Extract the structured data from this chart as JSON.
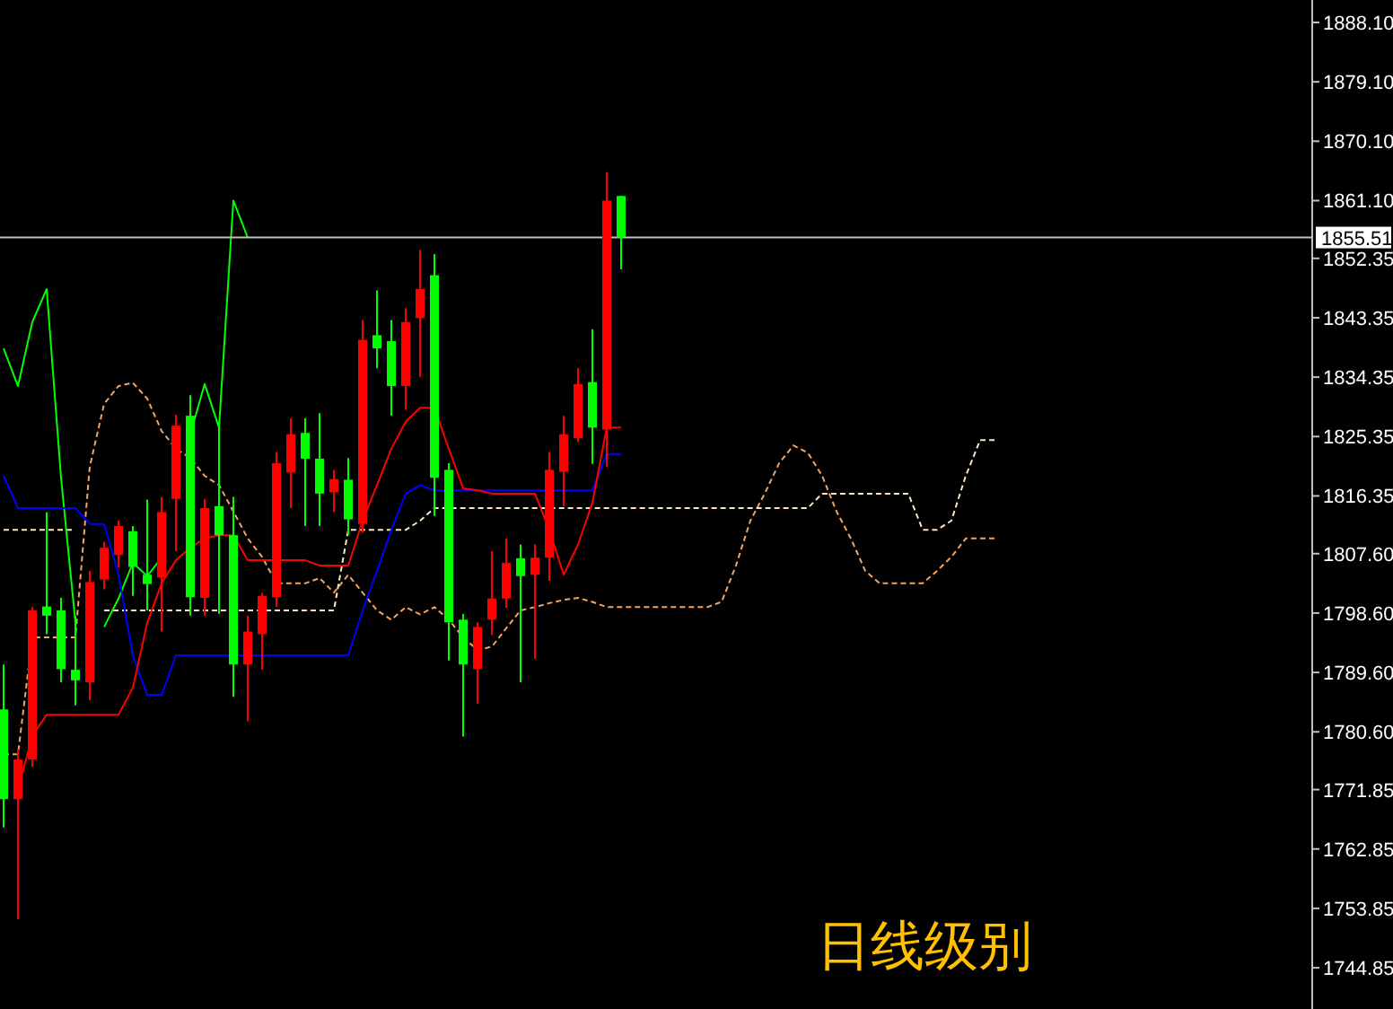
{
  "chart_data": {
    "type": "candlestick",
    "categories": [
      null,
      null,
      null,
      null,
      null,
      null,
      null,
      null,
      null,
      null,
      null,
      null,
      null,
      null,
      null,
      null,
      null,
      null,
      null,
      null,
      null,
      null,
      null,
      null,
      null,
      null,
      null,
      null,
      null,
      null,
      null,
      null,
      null,
      null,
      null,
      null,
      null,
      null,
      null,
      null,
      null,
      null,
      null,
      null,
      null,
      null,
      null,
      null,
      null,
      null,
      null,
      null,
      null,
      null,
      null,
      null,
      null,
      null,
      null,
      null,
      null,
      null,
      null,
      null,
      null,
      null,
      null,
      null,
      null,
      null
    ],
    "ohlc": [
      [
        1784.0,
        1790.8,
        1766.1,
        1770.4
      ],
      [
        1770.4,
        1778.0,
        1752.2,
        1776.4
      ],
      [
        1776.4,
        1799.5,
        1775.3,
        1799.0
      ],
      [
        1799.6,
        1813.9,
        1795.4,
        1798.2
      ],
      [
        1799.0,
        1800.9,
        1788.1,
        1790.1
      ],
      [
        1790.0,
        1798.2,
        1784.6,
        1788.4
      ],
      [
        1788.1,
        1805.0,
        1785.4,
        1803.3
      ],
      [
        1803.7,
        1809.4,
        1802.2,
        1808.5
      ],
      [
        1807.4,
        1812.6,
        1805.5,
        1811.8
      ],
      [
        1811.0,
        1811.8,
        1801.2,
        1805.6
      ],
      [
        1804.4,
        1815.8,
        1799.0,
        1803.0
      ],
      [
        1804.0,
        1816.2,
        1795.8,
        1813.9
      ],
      [
        1815.9,
        1828.7,
        1808.0,
        1827.0
      ],
      [
        1828.5,
        1831.6,
        1798.2,
        1801.0
      ],
      [
        1800.9,
        1815.9,
        1798.2,
        1814.5
      ],
      [
        1814.8,
        1827.0,
        1798.5,
        1810.4
      ],
      [
        1810.4,
        1816.2,
        1785.9,
        1790.8
      ],
      [
        1790.8,
        1798.2,
        1782.2,
        1795.8
      ],
      [
        1795.4,
        1801.7,
        1790.0,
        1801.2
      ],
      [
        1801.0,
        1823.0,
        1799.5,
        1821.3
      ],
      [
        1819.9,
        1828.1,
        1814.5,
        1825.7
      ],
      [
        1825.9,
        1828.1,
        1811.8,
        1822.0
      ],
      [
        1822.0,
        1828.9,
        1811.8,
        1816.7
      ],
      [
        1816.9,
        1820.3,
        1813.9,
        1818.9
      ],
      [
        1818.8,
        1822.1,
        1810.4,
        1812.8
      ],
      [
        1812.1,
        1843.0,
        1810.8,
        1840.0
      ],
      [
        1840.7,
        1847.5,
        1835.7,
        1838.7
      ],
      [
        1839.8,
        1843.0,
        1828.5,
        1833.0
      ],
      [
        1833.0,
        1844.8,
        1829.4,
        1842.7
      ],
      [
        1843.3,
        1853.6,
        1834.4,
        1847.7
      ],
      [
        1849.8,
        1853.0,
        1813.3,
        1819.1
      ],
      [
        1820.3,
        1821.3,
        1791.4,
        1797.2
      ],
      [
        1797.6,
        1798.5,
        1779.9,
        1790.8
      ],
      [
        1790.1,
        1797.2,
        1784.9,
        1796.5
      ],
      [
        1797.6,
        1808.0,
        1795.3,
        1800.8
      ],
      [
        1800.8,
        1809.9,
        1799.4,
        1806.2
      ],
      [
        1806.9,
        1809.0,
        1788.1,
        1804.2
      ],
      [
        1804.4,
        1809.0,
        1791.7,
        1807.0
      ],
      [
        1807.0,
        1823.0,
        1803.5,
        1820.3
      ],
      [
        1820.0,
        1828.5,
        1814.8,
        1825.7
      ],
      [
        1825.1,
        1835.7,
        1824.5,
        1833.3
      ],
      [
        1833.6,
        1841.6,
        1821.2,
        1826.7
      ],
      [
        1826.4,
        1865.4,
        1820.8,
        1861.1
      ],
      [
        1861.8,
        1861.8,
        1850.7,
        1855.51
      ],
      null,
      null,
      null,
      null,
      null,
      null,
      null,
      null,
      null,
      null,
      null,
      null,
      null,
      null,
      null,
      null,
      null,
      null,
      null,
      null,
      null,
      null,
      null,
      null,
      null,
      null
    ],
    "colors": [
      "#00ff00",
      "#ff0000",
      "#ff0000",
      "#00ff00",
      "#00ff00",
      "#00ff00",
      "#ff0000",
      "#ff0000",
      "#ff0000",
      "#00ff00",
      "#00ff00",
      "#ff0000",
      "#ff0000",
      "#00ff00",
      "#ff0000",
      "#00ff00",
      "#00ff00",
      "#ff0000",
      "#ff0000",
      "#ff0000",
      "#ff0000",
      "#00ff00",
      "#00ff00",
      "#ff0000",
      "#00ff00",
      "#ff0000",
      "#00ff00",
      "#00ff00",
      "#ff0000",
      "#ff0000",
      "#00ff00",
      "#00ff00",
      "#00ff00",
      "#ff0000",
      "#ff0000",
      "#ff0000",
      "#00ff00",
      "#ff0000",
      "#ff0000",
      "#ff0000",
      "#ff0000",
      "#00ff00",
      "#ff0000",
      "#00ff00",
      null,
      null,
      null,
      null,
      null,
      null,
      null,
      null,
      null,
      null,
      null,
      null,
      null,
      null,
      null,
      null,
      null,
      null,
      null,
      null,
      null,
      null,
      null,
      null,
      null,
      null
    ],
    "series": [
      {
        "type": "line",
        "color": "#f4a460",
        "line_style": "dashed",
        "values": [
          1777.2,
          1777.2,
          1794.9,
          1794.9,
          1794.9,
          1794.9,
          1820.8,
          1830.3,
          1833.0,
          1833.5,
          1831.1,
          1826.2,
          1823.5,
          1822.1,
          1819.4,
          1818.0,
          1814.0,
          1809.9,
          1807.1,
          1803.1,
          1803.1,
          1803.1,
          1803.9,
          1801.7,
          1804.4,
          1801.7,
          1799.0,
          1797.6,
          1799.5,
          1798.4,
          1799.5,
          1797.6,
          1794.9,
          1793.0,
          1793.5,
          1796.3,
          1799.0,
          1799.5,
          1800.1,
          1800.6,
          1800.9,
          1800.3,
          1799.5,
          1799.5,
          1799.5,
          1799.5,
          1799.5,
          1799.5,
          1799.5,
          1799.5,
          1800.3,
          1805.8,
          1812.6,
          1816.7,
          1821.3,
          1824.0,
          1822.9,
          1819.4,
          1814.0,
          1809.9,
          1805.0,
          1803.1,
          1803.1,
          1803.1,
          1803.1,
          1805.0,
          1807.1,
          1809.9,
          1809.9,
          1809.9
        ]
      },
      {
        "type": "line",
        "color": "#ffe4c4",
        "line_style": "dashed",
        "values": [
          1811.2,
          1811.2,
          1811.2,
          1811.2,
          1811.2,
          1811.2,
          null,
          1799.0,
          1799.0,
          1799.0,
          1799.0,
          1799.0,
          1799.0,
          1799.0,
          1799.0,
          1799.0,
          1799.0,
          1799.0,
          1799.0,
          1799.0,
          1799.0,
          1799.0,
          1799.0,
          1799.0,
          1811.2,
          1811.2,
          1811.2,
          1811.2,
          1811.2,
          1812.6,
          1814.5,
          1814.5,
          1814.5,
          1814.5,
          1814.5,
          1814.5,
          1814.5,
          1814.5,
          1814.5,
          1814.5,
          1814.5,
          1814.5,
          1814.5,
          1814.5,
          1814.5,
          1814.5,
          1814.5,
          1814.5,
          1814.5,
          1814.5,
          1814.5,
          1814.5,
          1814.5,
          1814.5,
          1814.5,
          1814.5,
          1814.5,
          1816.7,
          1816.7,
          1816.7,
          1816.7,
          1816.7,
          1816.7,
          1816.7,
          1811.2,
          1811.2,
          1812.6,
          1819.4,
          1824.8,
          1824.8
        ]
      },
      {
        "type": "line",
        "color": "#00ff00",
        "line_style": "solid",
        "values": [
          1838.7,
          1833.0,
          1842.7,
          1847.7,
          1819.1,
          1797.2,
          null,
          1796.5,
          1800.8,
          1806.2,
          1804.2,
          1807.0,
          null,
          1825.7,
          1833.3,
          1826.7,
          1861.1,
          1855.5,
          null,
          null,
          null,
          null,
          null,
          null,
          null,
          null,
          null,
          null,
          null,
          null,
          null,
          null,
          null,
          null,
          null,
          null,
          null,
          null,
          null,
          null,
          null,
          null,
          null,
          null,
          null,
          null,
          null,
          null,
          null,
          null,
          null,
          null,
          null,
          null,
          null,
          null,
          null,
          null,
          null,
          null,
          null,
          null,
          null,
          null,
          null,
          null,
          null,
          null,
          null,
          null
        ]
      },
      {
        "type": "line",
        "color": "#0000ff",
        "line_style": "solid",
        "values": [
          1819.4,
          1814.5,
          1814.5,
          1814.5,
          1814.5,
          1814.5,
          1812.1,
          1812.1,
          1804.4,
          1792.2,
          1786.2,
          1786.2,
          1792.2,
          1792.2,
          1792.2,
          1792.2,
          1792.2,
          1792.2,
          1792.2,
          1792.2,
          1792.2,
          1792.2,
          1792.2,
          1792.2,
          1792.2,
          1799.0,
          1805.0,
          1811.2,
          1816.7,
          1818.0,
          1817.2,
          1817.2,
          1817.2,
          1817.2,
          1817.2,
          1817.2,
          1817.2,
          1817.2,
          1817.2,
          1817.2,
          1817.2,
          1817.2,
          1822.7,
          1822.7,
          null,
          null,
          null,
          null,
          null,
          null,
          null,
          null,
          null,
          null,
          null,
          null,
          null,
          null,
          null,
          null,
          null,
          null,
          null,
          null,
          null,
          null,
          null,
          null,
          null,
          null
        ]
      },
      {
        "type": "line",
        "color": "#ff0000",
        "line_style": "solid",
        "values": [
          null,
          1771.8,
          1780.0,
          1783.2,
          1783.2,
          1783.2,
          1783.2,
          1783.2,
          1783.2,
          1787.3,
          1797.1,
          1803.1,
          1806.6,
          1808.5,
          1809.9,
          1810.4,
          1810.4,
          1806.6,
          1806.6,
          1806.6,
          1806.6,
          1806.6,
          1805.8,
          1805.8,
          1805.8,
          1812.6,
          1818.0,
          1823.5,
          1827.6,
          1829.7,
          1829.7,
          1823.5,
          1817.5,
          1817.2,
          1816.7,
          1816.7,
          1816.7,
          1816.7,
          1811.2,
          1804.4,
          1809.0,
          1815.3,
          1826.7,
          1826.7,
          null,
          null,
          null,
          null,
          null,
          null,
          null,
          null,
          null,
          null,
          null,
          null,
          null,
          null,
          null,
          null,
          null,
          null,
          null,
          null,
          null,
          null,
          null,
          null,
          null,
          null
        ]
      }
    ],
    "ylim": [
      1738.6,
      1891.5
    ],
    "yticks": [
      {
        "value": 1888.1,
        "label": "1888.10"
      },
      {
        "value": 1879.1,
        "label": "1879.10"
      },
      {
        "value": 1870.1,
        "label": "1870.10"
      },
      {
        "value": 1861.1,
        "label": "1861.10"
      },
      {
        "value": 1852.35,
        "label": "1852.35"
      },
      {
        "value": 1843.35,
        "label": "1843.35"
      },
      {
        "value": 1834.35,
        "label": "1834.35"
      },
      {
        "value": 1825.35,
        "label": "1825.35"
      },
      {
        "value": 1816.35,
        "label": "1816.35"
      },
      {
        "value": 1807.6,
        "label": "1807.60"
      },
      {
        "value": 1798.6,
        "label": "1798.60"
      },
      {
        "value": 1789.6,
        "label": "1789.60"
      },
      {
        "value": 1780.6,
        "label": "1780.60"
      },
      {
        "value": 1771.85,
        "label": "1771.85"
      },
      {
        "value": 1762.85,
        "label": "1762.85"
      },
      {
        "value": 1753.85,
        "label": "1753.85"
      },
      {
        "value": 1744.85,
        "label": "1744.85"
      }
    ],
    "tick_labels": "y",
    "ref_lines": [
      {
        "axis": "y",
        "value": 1855.51,
        "label": "1855.51",
        "color": "#c0c0c0"
      }
    ],
    "annotations": [
      "日线级别"
    ]
  }
}
